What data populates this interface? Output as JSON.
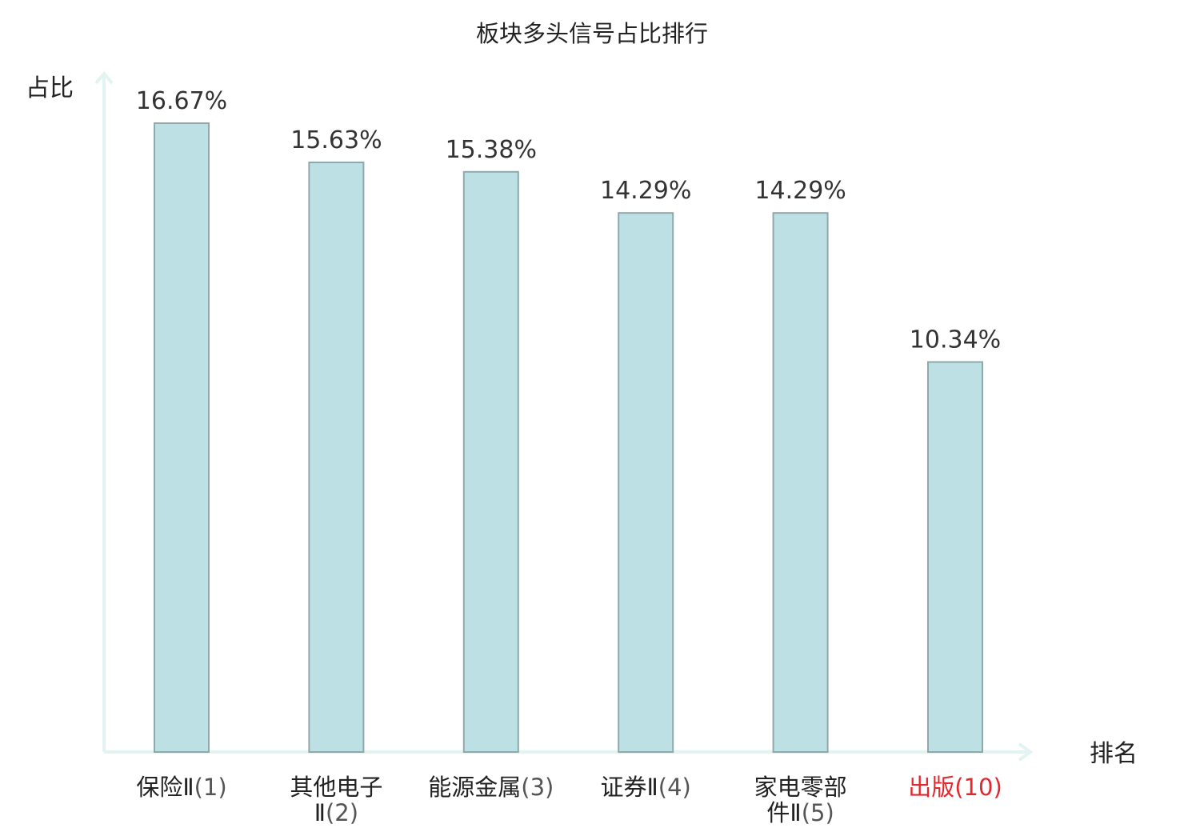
{
  "chart_data": {
    "type": "bar",
    "title": "板块多头信号占比排行",
    "ylabel": "占比",
    "xlabel": "排名",
    "ylim": [
      0,
      17.5
    ],
    "grid": false,
    "legend": "none",
    "categories": [
      {
        "name": "保险Ⅱ",
        "rank": "(1)",
        "highlight": false
      },
      {
        "name": "其他电子Ⅱ",
        "rank": "(2)",
        "highlight": false
      },
      {
        "name": "能源金属",
        "rank": "(3)",
        "highlight": false
      },
      {
        "name": "证券Ⅱ",
        "rank": "(4)",
        "highlight": false
      },
      {
        "name": "家电零部件Ⅱ",
        "rank": "(5)",
        "highlight": false
      },
      {
        "name": "出版",
        "rank": "(10)",
        "highlight": true
      }
    ],
    "values": [
      16.67,
      15.63,
      15.38,
      14.29,
      14.29,
      10.34
    ],
    "value_labels": [
      "16.67%",
      "15.63%",
      "15.38%",
      "14.29%",
      "14.29%",
      "10.34%"
    ],
    "colors": {
      "bar_fill": "#bce0e3",
      "bar_stroke": "#8fa9ab",
      "axis": "#e2f3f1",
      "highlight": "#e0282e"
    }
  }
}
